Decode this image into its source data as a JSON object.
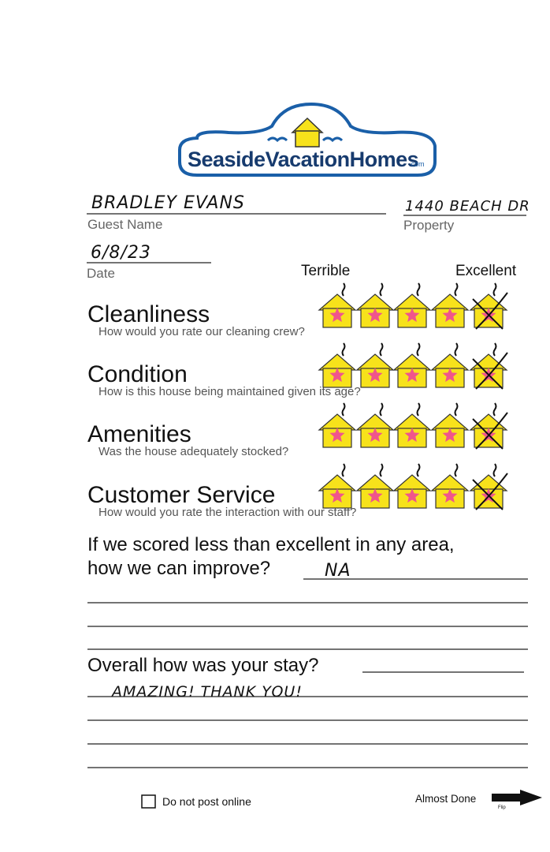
{
  "logo": {
    "name": "SeasideVacationHomes",
    "suffix": ".com"
  },
  "guest_name": {
    "value": "BRADLEY EVANS",
    "label": "Guest Name"
  },
  "property": {
    "value": "1440 BEACH DR",
    "label": "Property"
  },
  "date": {
    "value": "6/8/23",
    "label": "Date"
  },
  "scale": {
    "low": "Terrible",
    "high": "Excellent"
  },
  "categories": [
    {
      "title": "Cleanliness",
      "question": "How would you rate our cleaning crew?",
      "rating": 5
    },
    {
      "title": "Condition",
      "question": "How is this house being maintained given its age?",
      "rating": 5
    },
    {
      "title": "Amenities",
      "question": "Was the house adequately stocked?",
      "rating": 5
    },
    {
      "title": "Customer Service",
      "question": "How would you rate the interaction with our staff?",
      "rating": 5
    }
  ],
  "improve": {
    "line1": "If we scored less than excellent in any area,",
    "line2": "how we can improve?",
    "answer": "NA"
  },
  "overall": {
    "question": "Overall how was your stay?",
    "answer": "AMAZING! THANK YOU!"
  },
  "footer": {
    "checkbox": "Do not post online",
    "next": "Almost Done",
    "flip": "Flip"
  }
}
